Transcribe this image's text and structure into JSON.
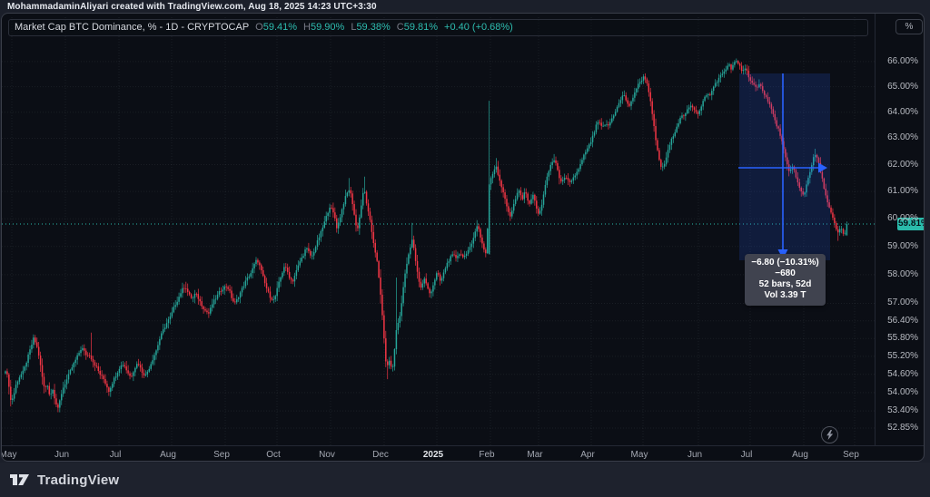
{
  "watermark": {
    "text": "MohammadaminAliyari created with TradingView.com, Aug 18, 2025 14:23 UTC+3:30"
  },
  "legend": {
    "title": "Market Cap BTC Dominance, % - 1D - CRYPTOCAP",
    "ohlc": [
      {
        "k": "O",
        "v": "59.41%"
      },
      {
        "k": "H",
        "v": "59.90%"
      },
      {
        "k": "L",
        "v": "59.38%"
      },
      {
        "k": "C",
        "v": "59.81%"
      }
    ],
    "change": "+0.40 (+0.68%)"
  },
  "price_axis": {
    "unit_button": "%",
    "tick_labels": [
      "66.00%",
      "65.00%",
      "64.00%",
      "63.00%",
      "62.00%",
      "61.00%",
      "60.00%",
      "59.00%",
      "58.00%",
      "57.00%",
      "56.40%",
      "55.80%",
      "55.20%",
      "54.60%",
      "54.00%",
      "53.40%",
      "52.85%"
    ],
    "last_price": {
      "label": "59.81%",
      "value": 59.81
    }
  },
  "time_axis": {
    "labels": [
      "May",
      "Jun",
      "Jul",
      "Aug",
      "Sep",
      "Oct",
      "Nov",
      "Dec",
      "2025",
      "Feb",
      "Mar",
      "Apr",
      "May",
      "Jun",
      "Jul",
      "Aug",
      "Sep"
    ]
  },
  "measure_tooltip": {
    "line1": "−6.80 (−10.31%) −680",
    "line2": "52 bars, 52d",
    "line3": "Vol 3.39 T"
  },
  "footer": {
    "brand": "TradingView"
  },
  "colors": {
    "up": "#26a69a",
    "down": "#f23645",
    "measure_blue": "#2962ff",
    "last_price_bg": "#2abbab",
    "grid": "rgba(170,175,190,0.10)"
  },
  "chart_data": {
    "type": "candlestick",
    "symbol": "CRYPTOCAP — Market Cap BTC Dominance",
    "timeframe": "1D",
    "unit": "%",
    "x_labels": [
      "May",
      "Jun",
      "Jul",
      "Aug",
      "Sep",
      "Oct",
      "Nov",
      "Dec",
      "2025",
      "Feb",
      "Mar",
      "Apr",
      "May",
      "Jun",
      "Jul",
      "Aug",
      "Sep"
    ],
    "y_ticks": [
      66,
      65,
      64,
      63,
      62,
      61,
      60,
      59,
      58,
      57,
      56.4,
      55.8,
      55.2,
      54.6,
      54,
      53.4,
      52.85
    ],
    "y_range": [
      52.85,
      66.15
    ],
    "scale": "log",
    "grid": true,
    "last_bar": {
      "open": 59.41,
      "high": 59.9,
      "low": 59.38,
      "close": 59.81
    },
    "measure": {
      "change": -6.8,
      "change_pct": -10.31,
      "bars": 52,
      "days": 52,
      "volume": "3.39 T"
    },
    "close_waypoints": [
      [
        4,
        54.75
      ],
      [
        7,
        54.45
      ],
      [
        10,
        53.7
      ],
      [
        13,
        53.9
      ],
      [
        16,
        54.3
      ],
      [
        20,
        54.55
      ],
      [
        24,
        54.7
      ],
      [
        28,
        55.1
      ],
      [
        32,
        55.5
      ],
      [
        35,
        55.8
      ],
      [
        38,
        55.6
      ],
      [
        41,
        55.2
      ],
      [
        44,
        54.6
      ],
      [
        47,
        54.1
      ],
      [
        50,
        54.3
      ],
      [
        53,
        53.85
      ],
      [
        56,
        54.15
      ],
      [
        59,
        53.7
      ],
      [
        62,
        53.45
      ],
      [
        65,
        53.9
      ],
      [
        68,
        54.2
      ],
      [
        72,
        54.45
      ],
      [
        76,
        54.75
      ],
      [
        80,
        55.0
      ],
      [
        84,
        55.25
      ],
      [
        88,
        55.5
      ],
      [
        91,
        55.35
      ],
      [
        94,
        55.2
      ],
      [
        96,
        55.3
      ],
      [
        100,
        55.05
      ],
      [
        104,
        54.85
      ],
      [
        108,
        54.6
      ],
      [
        112,
        54.45
      ],
      [
        115,
        54.25
      ],
      [
        118,
        54.05
      ],
      [
        122,
        54.35
      ],
      [
        126,
        54.6
      ],
      [
        130,
        54.85
      ],
      [
        134,
        54.95
      ],
      [
        138,
        54.7
      ],
      [
        142,
        54.5
      ],
      [
        146,
        54.8
      ],
      [
        150,
        55.0
      ],
      [
        154,
        54.7
      ],
      [
        158,
        54.55
      ],
      [
        162,
        54.8
      ],
      [
        166,
        55.1
      ],
      [
        170,
        55.4
      ],
      [
        174,
        55.8
      ],
      [
        178,
        56.1
      ],
      [
        182,
        56.35
      ],
      [
        186,
        56.55
      ],
      [
        190,
        56.9
      ],
      [
        194,
        57.15
      ],
      [
        198,
        57.45
      ],
      [
        202,
        57.6
      ],
      [
        206,
        57.3
      ],
      [
        210,
        57.15
      ],
      [
        213,
        57.35
      ],
      [
        216,
        57.2
      ],
      [
        220,
        56.95
      ],
      [
        224,
        56.75
      ],
      [
        228,
        56.65
      ],
      [
        232,
        57.0
      ],
      [
        236,
        57.2
      ],
      [
        240,
        57.4
      ],
      [
        244,
        57.55
      ],
      [
        248,
        57.6
      ],
      [
        251,
        57.4
      ],
      [
        254,
        57.1
      ],
      [
        257,
        57.0
      ],
      [
        260,
        57.2
      ],
      [
        263,
        57.4
      ],
      [
        266,
        57.6
      ],
      [
        269,
        57.8
      ],
      [
        272,
        57.95
      ],
      [
        275,
        58.1
      ],
      [
        278,
        58.35
      ],
      [
        281,
        58.55
      ],
      [
        284,
        58.3
      ],
      [
        287,
        58.0
      ],
      [
        290,
        57.65
      ],
      [
        293,
        57.4
      ],
      [
        296,
        57.2
      ],
      [
        300,
        57.1
      ],
      [
        304,
        57.6
      ],
      [
        308,
        58.0
      ],
      [
        311,
        58.3
      ],
      [
        314,
        58.15
      ],
      [
        317,
        57.9
      ],
      [
        320,
        57.75
      ],
      [
        324,
        58.1
      ],
      [
        328,
        58.45
      ],
      [
        332,
        58.7
      ],
      [
        335,
        58.95
      ],
      [
        338,
        58.8
      ],
      [
        341,
        58.6
      ],
      [
        345,
        58.95
      ],
      [
        349,
        59.3
      ],
      [
        352,
        59.55
      ],
      [
        355,
        59.85
      ],
      [
        358,
        60.15
      ],
      [
        361,
        60.45
      ],
      [
        364,
        60.3
      ],
      [
        367,
        60.0
      ],
      [
        369,
        59.65
      ],
      [
        372,
        60.0
      ],
      [
        375,
        60.4
      ],
      [
        378,
        60.75
      ],
      [
        381,
        61.0
      ],
      [
        383,
        61.1
      ],
      [
        386,
        60.6
      ],
      [
        389,
        59.95
      ],
      [
        391,
        59.55
      ],
      [
        393,
        59.85
      ],
      [
        395,
        60.3
      ],
      [
        397,
        60.8
      ],
      [
        399,
        61.1
      ],
      [
        401,
        60.7
      ],
      [
        403,
        60.3
      ],
      [
        405,
        60.0
      ],
      [
        407,
        59.6
      ],
      [
        409,
        59.2
      ],
      [
        411,
        58.85
      ],
      [
        413,
        58.5
      ],
      [
        415,
        57.9
      ],
      [
        417,
        57.3
      ],
      [
        419,
        56.6
      ],
      [
        421,
        55.7
      ],
      [
        423,
        55.0
      ],
      [
        424,
        54.7
      ],
      [
        426,
        55.15
      ],
      [
        428,
        54.9
      ],
      [
        430,
        54.7
      ],
      [
        432,
        55.3
      ],
      [
        434,
        56.0
      ],
      [
        436,
        56.3
      ],
      [
        438,
        56.5
      ],
      [
        440,
        57.0
      ],
      [
        443,
        57.8
      ],
      [
        446,
        58.4
      ],
      [
        449,
        58.85
      ],
      [
        452,
        59.25
      ],
      [
        454,
        58.9
      ],
      [
        456,
        58.4
      ],
      [
        458,
        58.0
      ],
      [
        460,
        57.7
      ],
      [
        462,
        57.5
      ],
      [
        465,
        57.9
      ],
      [
        467,
        57.7
      ],
      [
        469,
        57.5
      ],
      [
        471,
        57.35
      ],
      [
        473,
        57.45
      ],
      [
        475,
        57.65
      ],
      [
        477,
        57.85
      ],
      [
        479,
        58.05
      ],
      [
        481,
        57.95
      ],
      [
        483,
        57.75
      ],
      [
        485,
        57.9
      ],
      [
        487,
        58.1
      ],
      [
        489,
        58.3
      ],
      [
        491,
        58.45
      ],
      [
        494,
        58.6
      ],
      [
        497,
        58.7
      ],
      [
        500,
        58.6
      ],
      [
        503,
        58.75
      ],
      [
        506,
        58.7
      ],
      [
        509,
        58.65
      ],
      [
        512,
        58.7
      ],
      [
        515,
        58.95
      ],
      [
        518,
        59.2
      ],
      [
        521,
        59.5
      ],
      [
        524,
        59.8
      ],
      [
        526,
        59.5
      ],
      [
        528,
        59.2
      ],
      [
        530,
        59.0
      ],
      [
        532,
        58.8
      ],
      [
        534,
        58.7
      ],
      [
        536,
        61.2
      ],
      [
        539,
        61.5
      ],
      [
        542,
        61.8
      ],
      [
        544,
        62.0
      ],
      [
        546,
        61.7
      ],
      [
        548,
        61.45
      ],
      [
        550,
        61.2
      ],
      [
        552,
        61.0
      ],
      [
        554,
        60.7
      ],
      [
        556,
        60.45
      ],
      [
        558,
        60.25
      ],
      [
        560,
        60.1
      ],
      [
        563,
        60.45
      ],
      [
        566,
        60.75
      ],
      [
        569,
        61.05
      ],
      [
        571,
        60.9
      ],
      [
        573,
        60.7
      ],
      [
        575,
        60.9
      ],
      [
        577,
        61.0
      ],
      [
        579,
        60.7
      ],
      [
        581,
        60.5
      ],
      [
        583,
        60.75
      ],
      [
        585,
        60.9
      ],
      [
        587,
        60.6
      ],
      [
        589,
        60.35
      ],
      [
        591,
        60.15
      ],
      [
        593,
        60.3
      ],
      [
        595,
        60.6
      ],
      [
        597,
        61.0
      ],
      [
        599,
        61.3
      ],
      [
        601,
        61.6
      ],
      [
        603,
        61.85
      ],
      [
        605,
        62.05
      ],
      [
        607,
        62.15
      ],
      [
        609,
        62.2
      ],
      [
        611,
        61.9
      ],
      [
        613,
        61.6
      ],
      [
        615,
        61.45
      ],
      [
        617,
        61.35
      ],
      [
        619,
        61.45
      ],
      [
        621,
        61.5
      ],
      [
        623,
        61.4
      ],
      [
        625,
        61.3
      ],
      [
        627,
        61.4
      ],
      [
        629,
        61.5
      ],
      [
        631,
        61.6
      ],
      [
        633,
        61.7
      ],
      [
        635,
        61.8
      ],
      [
        637,
        62.0
      ],
      [
        639,
        62.15
      ],
      [
        641,
        62.35
      ],
      [
        643,
        62.5
      ],
      [
        645,
        62.6
      ],
      [
        647,
        62.75
      ],
      [
        649,
        62.9
      ],
      [
        651,
        63.1
      ],
      [
        653,
        63.3
      ],
      [
        655,
        63.55
      ],
      [
        657,
        63.65
      ],
      [
        659,
        63.5
      ],
      [
        661,
        63.4
      ],
      [
        663,
        63.5
      ],
      [
        665,
        63.55
      ],
      [
        667,
        63.45
      ],
      [
        669,
        63.55
      ],
      [
        671,
        63.7
      ],
      [
        673,
        63.85
      ],
      [
        675,
        64.0
      ],
      [
        677,
        64.15
      ],
      [
        679,
        64.3
      ],
      [
        681,
        64.45
      ],
      [
        683,
        64.6
      ],
      [
        685,
        64.7
      ],
      [
        687,
        64.5
      ],
      [
        689,
        64.35
      ],
      [
        691,
        64.2
      ],
      [
        693,
        64.4
      ],
      [
        695,
        64.6
      ],
      [
        697,
        64.8
      ],
      [
        699,
        64.95
      ],
      [
        701,
        65.1
      ],
      [
        703,
        65.2
      ],
      [
        705,
        65.3
      ],
      [
        707,
        65.4
      ],
      [
        709,
        65.3
      ],
      [
        711,
        65.05
      ],
      [
        713,
        64.7
      ],
      [
        715,
        64.2
      ],
      [
        717,
        63.7
      ],
      [
        719,
        63.2
      ],
      [
        721,
        62.7
      ],
      [
        723,
        62.3
      ],
      [
        725,
        62.0
      ],
      [
        727,
        61.85
      ],
      [
        729,
        61.95
      ],
      [
        731,
        62.2
      ],
      [
        733,
        62.45
      ],
      [
        735,
        62.7
      ],
      [
        737,
        62.9
      ],
      [
        739,
        63.1
      ],
      [
        741,
        63.25
      ],
      [
        743,
        63.45
      ],
      [
        745,
        63.6
      ],
      [
        747,
        63.75
      ],
      [
        749,
        63.9
      ],
      [
        751,
        63.8
      ],
      [
        753,
        63.95
      ],
      [
        755,
        64.1
      ],
      [
        757,
        64.2
      ],
      [
        759,
        64.3
      ],
      [
        761,
        64.2
      ],
      [
        763,
        64.1
      ],
      [
        765,
        64.0
      ],
      [
        767,
        63.95
      ],
      [
        769,
        64.1
      ],
      [
        771,
        64.3
      ],
      [
        773,
        64.5
      ],
      [
        775,
        64.65
      ],
      [
        777,
        64.75
      ],
      [
        779,
        64.6
      ],
      [
        781,
        64.75
      ],
      [
        783,
        64.95
      ],
      [
        785,
        65.1
      ],
      [
        787,
        65.2
      ],
      [
        789,
        65.3
      ],
      [
        791,
        65.4
      ],
      [
        793,
        65.5
      ],
      [
        795,
        65.6
      ],
      [
        797,
        65.7
      ],
      [
        799,
        65.8
      ],
      [
        801,
        65.85
      ],
      [
        803,
        65.7
      ],
      [
        805,
        65.85
      ],
      [
        807,
        65.95
      ],
      [
        809,
        66.0
      ],
      [
        811,
        65.9
      ],
      [
        813,
        65.8
      ],
      [
        815,
        65.6
      ],
      [
        817,
        65.7
      ],
      [
        819,
        65.75
      ],
      [
        821,
        65.55
      ],
      [
        823,
        65.35
      ],
      [
        825,
        65.2
      ],
      [
        827,
        65.1
      ],
      [
        829,
        65.0
      ],
      [
        831,
        64.9
      ],
      [
        833,
        65.0
      ],
      [
        835,
        65.15
      ],
      [
        837,
        64.95
      ],
      [
        839,
        64.75
      ],
      [
        841,
        64.6
      ],
      [
        843,
        64.5
      ],
      [
        845,
        64.35
      ],
      [
        847,
        64.15
      ],
      [
        849,
        63.95
      ],
      [
        851,
        63.7
      ],
      [
        853,
        63.5
      ],
      [
        855,
        63.35
      ],
      [
        857,
        63.15
      ],
      [
        859,
        62.85
      ],
      [
        861,
        62.55
      ],
      [
        863,
        62.2
      ],
      [
        865,
        61.95
      ],
      [
        867,
        61.7
      ],
      [
        869,
        61.85
      ],
      [
        871,
        62.0
      ],
      [
        873,
        61.7
      ],
      [
        875,
        61.45
      ],
      [
        877,
        61.25
      ],
      [
        879,
        61.05
      ],
      [
        881,
        60.95
      ],
      [
        883,
        60.85
      ],
      [
        885,
        61.1
      ],
      [
        887,
        61.4
      ],
      [
        889,
        61.65
      ],
      [
        891,
        61.9
      ],
      [
        893,
        62.15
      ],
      [
        895,
        62.4
      ],
      [
        897,
        62.3
      ],
      [
        899,
        62.1
      ],
      [
        901,
        61.8
      ],
      [
        903,
        61.5
      ],
      [
        905,
        61.2
      ],
      [
        907,
        60.9
      ],
      [
        909,
        60.6
      ],
      [
        911,
        60.4
      ],
      [
        913,
        60.2
      ],
      [
        915,
        60.0
      ],
      [
        917,
        59.8
      ],
      [
        919,
        59.6
      ],
      [
        921,
        59.45
      ],
      [
        923,
        59.65
      ],
      [
        925,
        59.6
      ],
      [
        927,
        59.45
      ],
      [
        929,
        59.5
      ],
      [
        931,
        59.81
      ]
    ],
    "wick_overrides": [
      {
        "x": 10,
        "low": 53.55
      },
      {
        "x": 62,
        "low": 53.36
      },
      {
        "x": 98,
        "high": 56.0
      },
      {
        "x": 202,
        "high": 57.75
      },
      {
        "x": 383,
        "high": 61.5
      },
      {
        "x": 399,
        "high": 61.55
      },
      {
        "x": 424,
        "low": 54.44
      },
      {
        "x": 434,
        "high": 57.9
      },
      {
        "x": 452,
        "high": 59.85
      },
      {
        "x": 524,
        "high": 59.95
      },
      {
        "x": 536,
        "open": 58.72,
        "high": 64.45
      },
      {
        "x": 544,
        "high": 62.25
      },
      {
        "x": 609,
        "high": 62.4
      },
      {
        "x": 685,
        "high": 64.85
      },
      {
        "x": 707,
        "high": 65.5
      },
      {
        "x": 809,
        "high": 66.12
      },
      {
        "x": 895,
        "high": 62.6
      },
      {
        "x": 921,
        "low": 59.2
      },
      {
        "x": 931,
        "open": 59.41,
        "high": 59.9,
        "low": 59.38,
        "close": 59.81
      }
    ]
  }
}
